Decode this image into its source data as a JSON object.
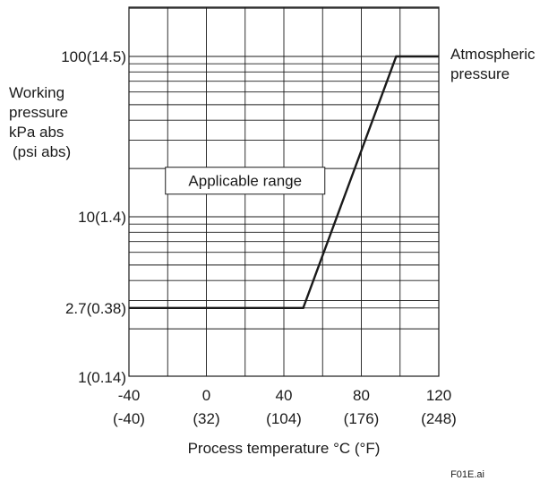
{
  "chart_data": {
    "type": "line",
    "title": "",
    "xlabel": "Process temperature °C (°F)",
    "ylabel_lines": [
      "Working",
      "pressure",
      "kPa abs",
      "(psi abs)"
    ],
    "x_scale": "linear",
    "y_scale": "log",
    "xlim": [
      -40,
      120
    ],
    "ylim": [
      1,
      300
    ],
    "x_ticks": [
      {
        "value": -40,
        "label": "-40",
        "sublabel": "(-40)"
      },
      {
        "value": 0,
        "label": "0",
        "sublabel": "(32)"
      },
      {
        "value": 40,
        "label": "40",
        "sublabel": "(104)"
      },
      {
        "value": 80,
        "label": "80",
        "sublabel": "(176)"
      },
      {
        "value": 120,
        "label": "120",
        "sublabel": "(248)"
      }
    ],
    "y_ticks": [
      {
        "value": 1,
        "label": "1(0.14)"
      },
      {
        "value": 2.7,
        "label": "2.7(0.38)"
      },
      {
        "value": 10,
        "label": "10(1.4)"
      },
      {
        "value": 100,
        "label": "100(14.5)"
      }
    ],
    "grid": true,
    "series": [
      {
        "x": [
          -40,
          50,
          98,
          120
        ],
        "y": [
          2.7,
          2.7,
          100,
          100
        ]
      }
    ],
    "annotations": [
      {
        "text": "Applicable range",
        "x": 20,
        "y": 17
      },
      {
        "text_lines": [
          "Atmospheric",
          "pressure"
        ],
        "x": 126,
        "y": 100
      }
    ],
    "figure_id": "F01E.ai"
  },
  "colors": {
    "line": "#1a1a1a",
    "grid": "#1a1a1a",
    "text": "#1a1a1a"
  }
}
